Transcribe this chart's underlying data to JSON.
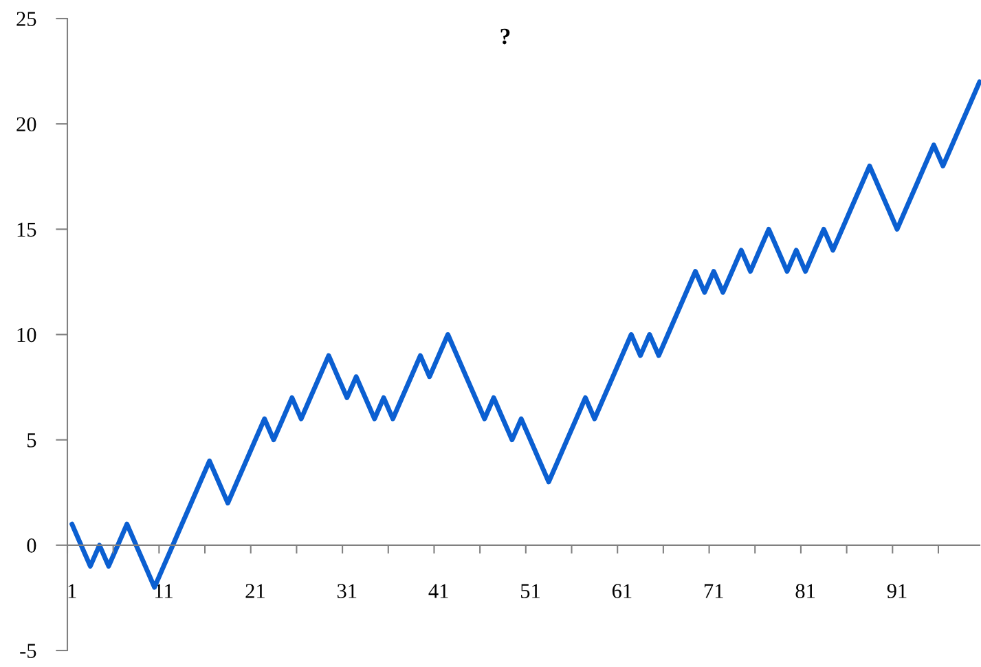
{
  "chart_data": {
    "type": "line",
    "title": "?",
    "categories": [
      "1",
      null,
      null,
      null,
      null,
      null,
      null,
      null,
      null,
      null,
      "11",
      null,
      null,
      null,
      null,
      null,
      null,
      null,
      null,
      null,
      "21",
      null,
      null,
      null,
      null,
      null,
      null,
      null,
      null,
      null,
      "31",
      null,
      null,
      null,
      null,
      null,
      null,
      null,
      null,
      null,
      "41",
      null,
      null,
      null,
      null,
      null,
      null,
      null,
      null,
      null,
      "51",
      null,
      null,
      null,
      null,
      null,
      null,
      null,
      null,
      null,
      "61",
      null,
      null,
      null,
      null,
      null,
      null,
      null,
      null,
      null,
      "71",
      null,
      null,
      null,
      null,
      null,
      null,
      null,
      null,
      null,
      "81",
      null,
      null,
      null,
      null,
      null,
      null,
      null,
      null,
      null,
      "91",
      null,
      null,
      null,
      null,
      null,
      null,
      null,
      null,
      null
    ],
    "series": [
      {
        "color": "#0b5fd1",
        "values": [
          1,
          0,
          -1,
          0,
          -1,
          0,
          1,
          0,
          -1,
          -2,
          -1,
          0,
          1,
          2,
          3,
          4,
          3,
          2,
          3,
          4,
          5,
          6,
          5,
          6,
          7,
          6,
          7,
          8,
          9,
          8,
          7,
          8,
          7,
          6,
          7,
          6,
          7,
          8,
          9,
          8,
          9,
          10,
          9,
          8,
          7,
          6,
          7,
          6,
          5,
          6,
          5,
          4,
          3,
          4,
          5,
          6,
          7,
          6,
          7,
          8,
          9,
          10,
          9,
          10,
          9,
          10,
          11,
          12,
          13,
          12,
          13,
          12,
          13,
          14,
          13,
          14,
          15,
          14,
          13,
          14,
          13,
          14,
          15,
          14,
          15,
          16,
          17,
          18,
          17,
          16,
          15,
          16,
          17,
          18,
          19,
          18,
          19,
          20,
          21,
          22
        ]
      }
    ],
    "ylim": [
      -5,
      25
    ],
    "yticks": [
      {
        "value": -5,
        "label": "-5"
      },
      0,
      5,
      10,
      15,
      20,
      25
    ],
    "grid": false,
    "marker": "none",
    "line_style": "solid"
  }
}
